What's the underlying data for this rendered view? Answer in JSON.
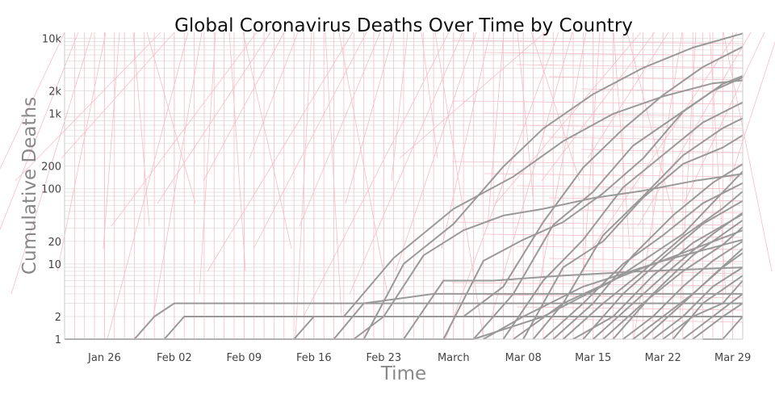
{
  "chart_data": {
    "type": "line",
    "title": "Global Coronavirus Deaths Over Time by Country",
    "xlabel": "Time",
    "ylabel": "Cumulative Deaths",
    "y_scale": "log",
    "ylim": [
      1,
      12000
    ],
    "xlim": [
      "2020-01-22",
      "2020-03-30"
    ],
    "grid": true,
    "legend": "none",
    "colors": {
      "series": "#999999",
      "overlay": "#f7bdc8",
      "grid": "#e5e5e5",
      "axis": "#cccccc"
    },
    "x_ticks": [
      {
        "date": "2020-01-26",
        "label": "Jan 26"
      },
      {
        "date": "2020-02-02",
        "label": "Feb 02"
      },
      {
        "date": "2020-02-09",
        "label": "Feb 09"
      },
      {
        "date": "2020-02-16",
        "label": "Feb 16"
      },
      {
        "date": "2020-02-23",
        "label": "Feb 23"
      },
      {
        "date": "2020-03-01",
        "label": "March"
      },
      {
        "date": "2020-03-08",
        "label": "Mar 08"
      },
      {
        "date": "2020-03-15",
        "label": "Mar 15"
      },
      {
        "date": "2020-03-22",
        "label": "Mar 22"
      },
      {
        "date": "2020-03-29",
        "label": "Mar 29"
      }
    ],
    "y_ticks": [
      {
        "value": 1,
        "label": "1"
      },
      {
        "value": 2,
        "label": "2"
      },
      {
        "value": 10,
        "label": "10"
      },
      {
        "value": 20,
        "label": "20"
      },
      {
        "value": 100,
        "label": "100"
      },
      {
        "value": 200,
        "label": "200"
      },
      {
        "value": 1000,
        "label": "1k"
      },
      {
        "value": 2000,
        "label": "2k"
      },
      {
        "value": 10000,
        "label": "10k"
      }
    ],
    "series": [
      {
        "x": [
          "2020-01-22",
          "2020-01-28",
          "2020-02-04",
          "2020-02-11",
          "2020-02-18",
          "2020-02-25",
          "2020-03-03",
          "2020-03-10",
          "2020-03-17",
          "2020-03-24",
          "2020-03-30"
        ],
        "y": [
          1,
          1,
          1,
          1,
          1,
          1,
          1,
          2,
          6,
          25,
          170
        ]
      },
      {
        "x": [
          "2020-02-21",
          "2020-02-25",
          "2020-03-01",
          "2020-03-06",
          "2020-03-10",
          "2020-03-15",
          "2020-03-20",
          "2020-03-25",
          "2020-03-30"
        ],
        "y": [
          1,
          10,
          34,
          197,
          631,
          1809,
          4032,
          7503,
          11591
        ]
      },
      {
        "x": [
          "2020-02-19",
          "2020-02-24",
          "2020-03-01",
          "2020-03-07",
          "2020-03-12",
          "2020-03-17",
          "2020-03-22",
          "2020-03-27",
          "2020-03-30"
        ],
        "y": [
          2,
          12,
          54,
          145,
          429,
          988,
          1685,
          2517,
          2757
        ]
      },
      {
        "x": [
          "2020-03-02",
          "2020-03-06",
          "2020-03-10",
          "2020-03-14",
          "2020-03-18",
          "2020-03-22",
          "2020-03-26",
          "2020-03-30"
        ],
        "y": [
          2,
          5,
          36,
          191,
          623,
          1756,
          4145,
          7716
        ]
      },
      {
        "x": [
          "2020-02-29",
          "2020-03-04",
          "2020-03-08",
          "2020-03-12",
          "2020-03-16",
          "2020-03-20",
          "2020-03-24",
          "2020-03-28",
          "2020-03-30"
        ],
        "y": [
          1,
          11,
          21,
          36,
          87,
          252,
          1050,
          2467,
          3170
        ]
      },
      {
        "x": [
          "2020-03-03",
          "2020-03-07",
          "2020-03-11",
          "2020-03-15",
          "2020-03-19",
          "2020-03-23",
          "2020-03-27",
          "2020-03-30"
        ],
        "y": [
          1,
          4,
          33,
          91,
          372,
          863,
          1995,
          3024
        ]
      },
      {
        "x": [
          "2020-03-06",
          "2020-03-10",
          "2020-03-14",
          "2020-03-18",
          "2020-03-22",
          "2020-03-26",
          "2020-03-30"
        ],
        "y": [
          1,
          6,
          21,
          104,
          281,
          759,
          1408
        ]
      },
      {
        "x": [
          "2020-02-20",
          "2020-02-23",
          "2020-02-27",
          "2020-03-02",
          "2020-03-06",
          "2020-03-10",
          "2020-03-15",
          "2020-03-20",
          "2020-03-25",
          "2020-03-30"
        ],
        "y": [
          1,
          2,
          13,
          28,
          44,
          54,
          75,
          94,
          126,
          158
        ]
      },
      {
        "x": [
          "2020-03-09",
          "2020-03-12",
          "2020-03-16",
          "2020-03-20",
          "2020-03-24",
          "2020-03-28",
          "2020-03-30"
        ],
        "y": [
          1,
          3,
          24,
          79,
          276,
          639,
          864
        ]
      },
      {
        "x": [
          "2020-03-08",
          "2020-03-12",
          "2020-03-16",
          "2020-03-20",
          "2020-03-24",
          "2020-03-28",
          "2020-03-30"
        ],
        "y": [
          1,
          9,
          20,
          76,
          213,
          353,
          513
        ]
      },
      {
        "x": [
          "2020-03-11",
          "2020-03-15",
          "2020-03-19",
          "2020-03-23",
          "2020-03-27",
          "2020-03-30"
        ],
        "y": [
          1,
          3,
          13,
          44,
          120,
          213
        ]
      },
      {
        "x": [
          "2020-03-10",
          "2020-03-14",
          "2020-03-18",
          "2020-03-22",
          "2020-03-26",
          "2020-03-30"
        ],
        "y": [
          1,
          3,
          10,
          24,
          64,
          119
        ]
      },
      {
        "x": [
          "2020-03-12",
          "2020-03-16",
          "2020-03-20",
          "2020-03-24",
          "2020-03-28",
          "2020-03-30"
        ],
        "y": [
          1,
          3,
          8,
          23,
          55,
          92
        ]
      },
      {
        "x": [
          "2020-03-14",
          "2020-03-18",
          "2020-03-22",
          "2020-03-26",
          "2020-03-30"
        ],
        "y": [
          1,
          4,
          12,
          34,
          69
        ]
      },
      {
        "x": [
          "2020-03-13",
          "2020-03-17",
          "2020-03-21",
          "2020-03-25",
          "2020-03-30"
        ],
        "y": [
          1,
          2,
          7,
          19,
          46
        ]
      },
      {
        "x": [
          "2020-03-16",
          "2020-03-20",
          "2020-03-24",
          "2020-03-28",
          "2020-03-30"
        ],
        "y": [
          1,
          3,
          8,
          18,
          31
        ]
      },
      {
        "x": [
          "2020-03-18",
          "2020-03-21",
          "2020-03-24",
          "2020-03-27",
          "2020-03-30"
        ],
        "y": [
          1,
          2,
          5,
          11,
          20
        ]
      },
      {
        "x": [
          "2020-03-19",
          "2020-03-22",
          "2020-03-25",
          "2020-03-28",
          "2020-03-30"
        ],
        "y": [
          1,
          2,
          4,
          9,
          14
        ]
      },
      {
        "x": [
          "2020-03-21",
          "2020-03-24",
          "2020-03-27",
          "2020-03-30"
        ],
        "y": [
          1,
          2,
          5,
          9
        ]
      },
      {
        "x": [
          "2020-03-22",
          "2020-03-25",
          "2020-03-28",
          "2020-03-30"
        ],
        "y": [
          1,
          2,
          3,
          6
        ]
      },
      {
        "x": [
          "2020-03-24",
          "2020-03-27",
          "2020-03-30"
        ],
        "y": [
          1,
          2,
          4
        ]
      },
      {
        "x": [
          "2020-03-26",
          "2020-03-28",
          "2020-03-30"
        ],
        "y": [
          1,
          1,
          2
        ]
      },
      {
        "x": [
          "2020-01-29",
          "2020-01-31",
          "2020-02-02",
          "2020-02-10",
          "2020-02-20",
          "2020-03-01",
          "2020-03-10",
          "2020-03-20",
          "2020-03-30"
        ],
        "y": [
          1,
          2,
          3,
          3,
          3,
          3,
          3,
          3,
          3
        ]
      },
      {
        "x": [
          "2020-02-01",
          "2020-02-03",
          "2020-02-12",
          "2020-02-22",
          "2020-03-03",
          "2020-03-13",
          "2020-03-23",
          "2020-03-30"
        ],
        "y": [
          1,
          2,
          2,
          2,
          2,
          2,
          2,
          2
        ]
      },
      {
        "x": [
          "2020-02-14",
          "2020-02-16",
          "2020-02-26",
          "2020-03-07",
          "2020-03-17",
          "2020-03-27",
          "2020-03-30"
        ],
        "y": [
          1,
          2,
          2,
          2,
          2,
          2,
          2
        ]
      },
      {
        "x": [
          "2020-02-18",
          "2020-02-21",
          "2020-02-28",
          "2020-03-07",
          "2020-03-16",
          "2020-03-25",
          "2020-03-30"
        ],
        "y": [
          1,
          3,
          4,
          4,
          4,
          4,
          4
        ]
      },
      {
        "x": [
          "2020-02-25",
          "2020-02-29",
          "2020-03-05",
          "2020-03-12",
          "2020-03-20",
          "2020-03-30"
        ],
        "y": [
          1,
          6,
          6,
          7,
          8,
          9
        ]
      },
      {
        "x": [
          "2020-03-04",
          "2020-03-08",
          "2020-03-14",
          "2020-03-22",
          "2020-03-30"
        ],
        "y": [
          1,
          2,
          5,
          11,
          21
        ]
      },
      {
        "x": [
          "2020-03-07",
          "2020-03-12",
          "2020-03-18",
          "2020-03-24",
          "2020-03-30"
        ],
        "y": [
          1,
          3,
          7,
          14,
          28
        ]
      },
      {
        "x": [
          "2020-03-15",
          "2020-03-19",
          "2020-03-23",
          "2020-03-27",
          "2020-03-30"
        ],
        "y": [
          1,
          3,
          9,
          25,
          48
        ]
      },
      {
        "x": [
          "2020-03-17",
          "2020-03-21",
          "2020-03-25",
          "2020-03-30"
        ],
        "y": [
          1,
          4,
          13,
          38
        ]
      },
      {
        "x": [
          "2020-03-20",
          "2020-03-24",
          "2020-03-27",
          "2020-03-30"
        ],
        "y": [
          1,
          3,
          7,
          16
        ]
      },
      {
        "x": [
          "2020-03-23",
          "2020-03-26",
          "2020-03-30"
        ],
        "y": [
          1,
          3,
          7
        ]
      },
      {
        "x": [
          "2020-03-25",
          "2020-03-28",
          "2020-03-30"
        ],
        "y": [
          1,
          2,
          3
        ]
      }
    ]
  }
}
